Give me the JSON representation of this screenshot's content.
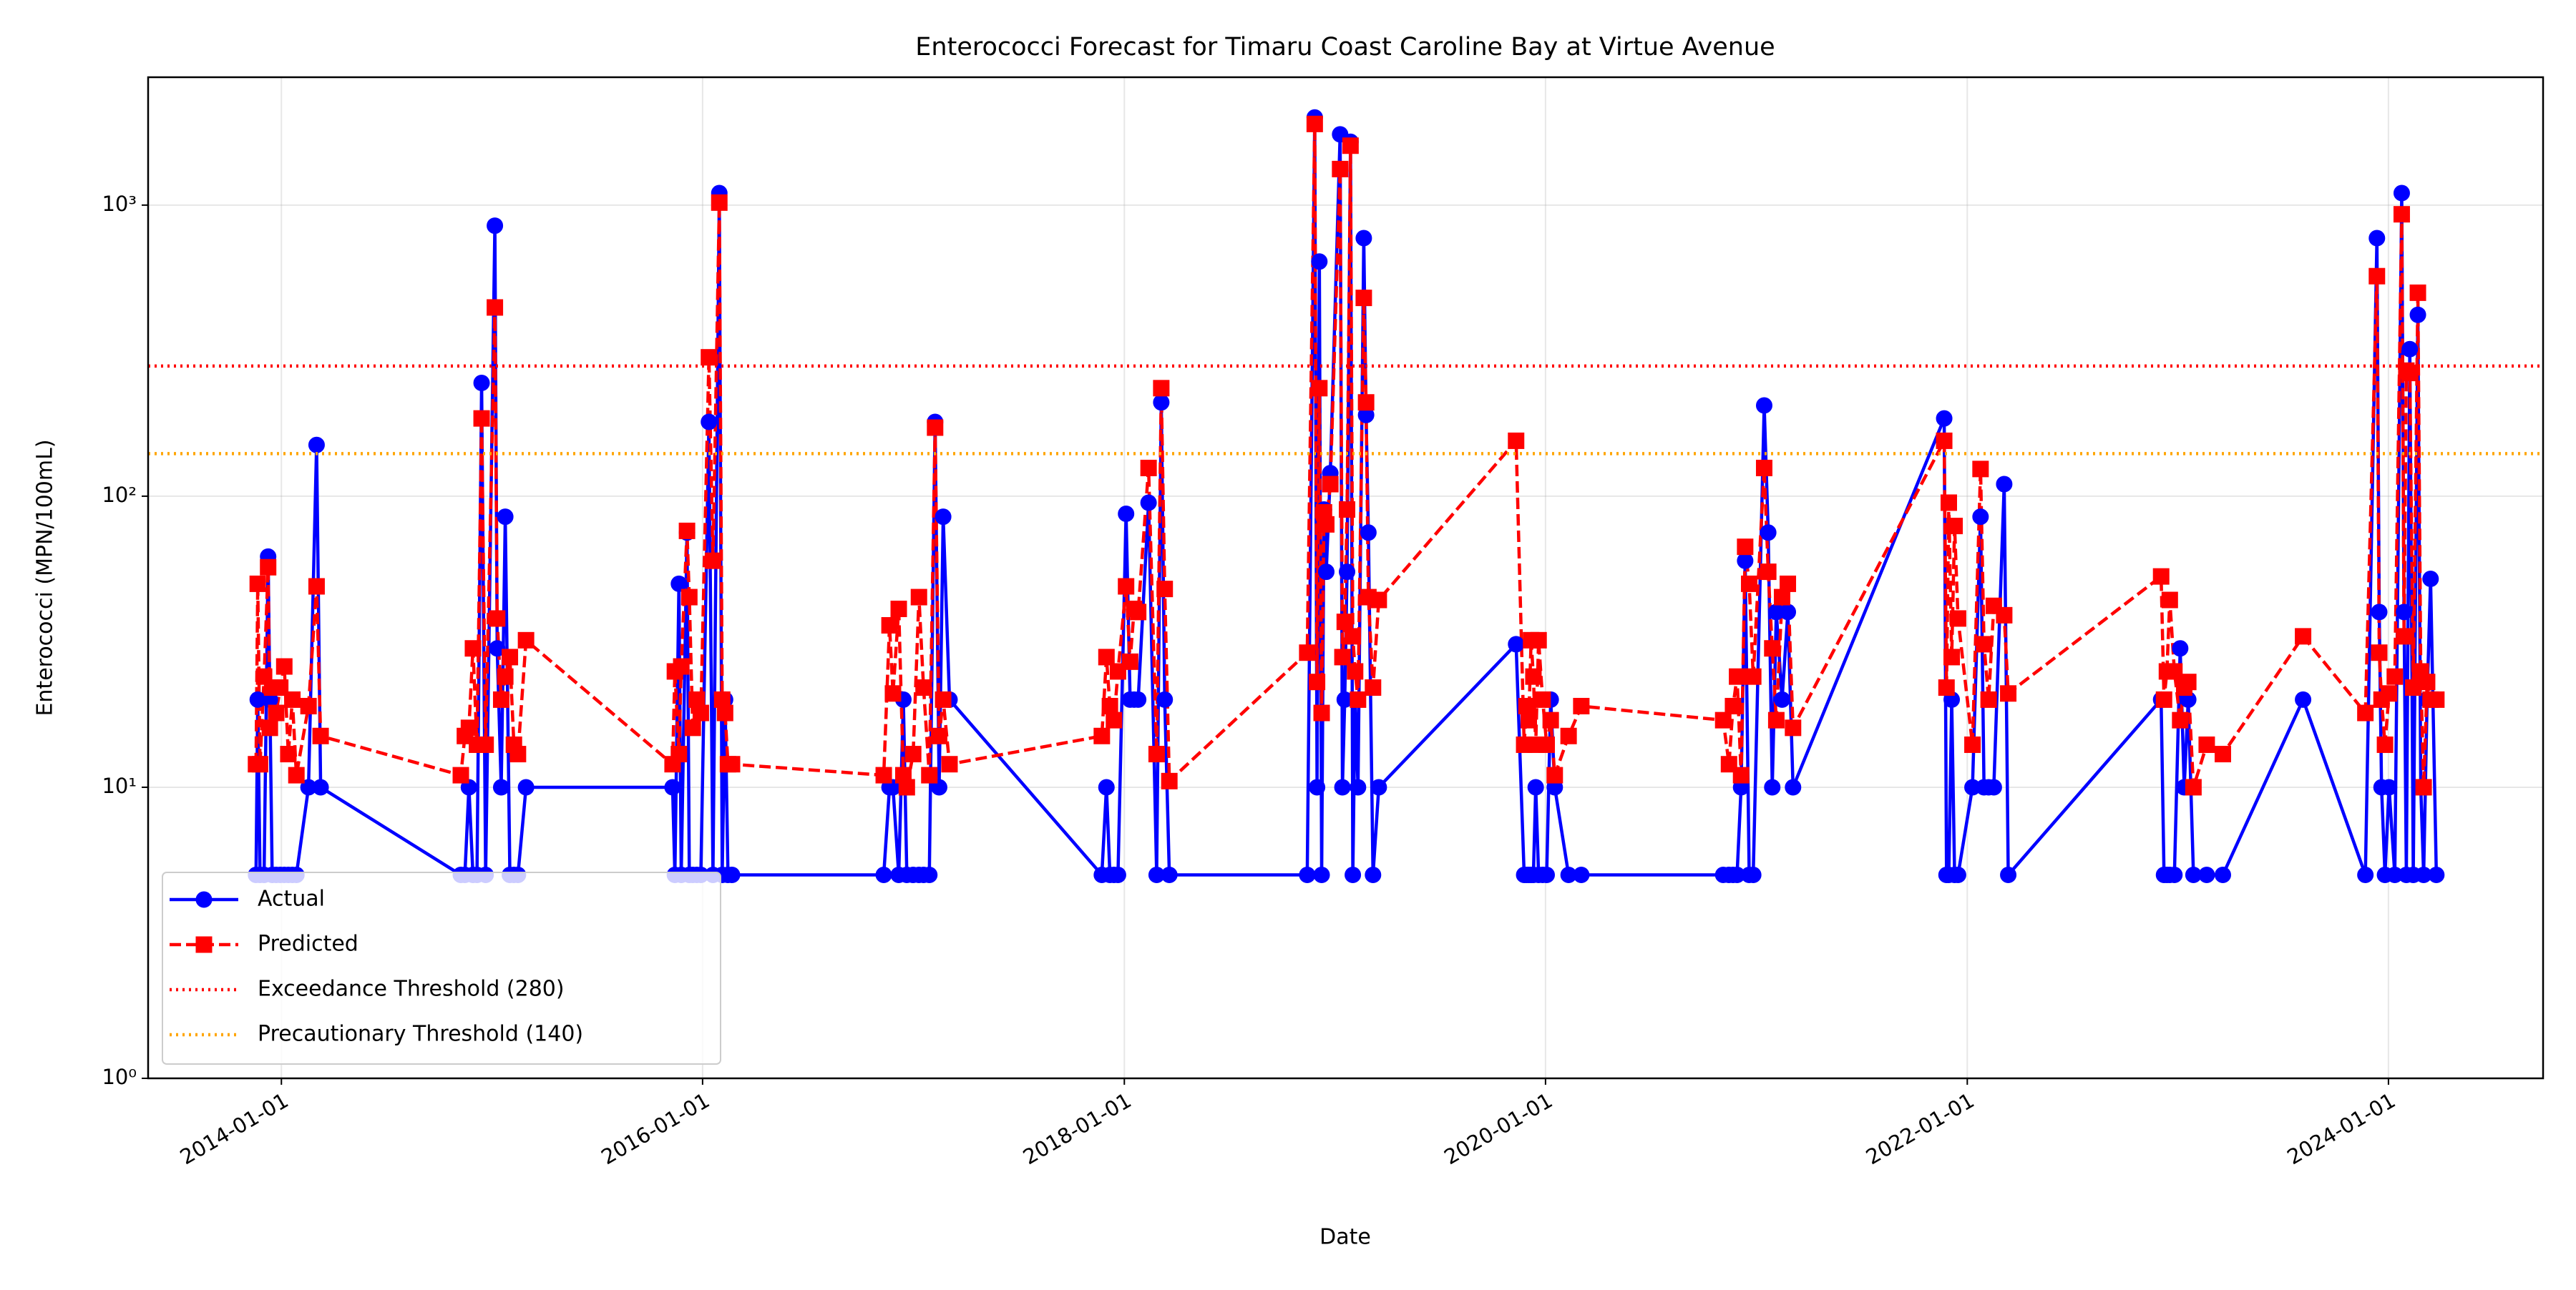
{
  "chart_data": {
    "type": "line",
    "title": "Enterococci Forecast for Timaru Coast Caroline Bay at Virtue Avenue",
    "x_label": "Date",
    "y_label": "Enterococci (MPN/100mL)",
    "yscale": "log",
    "grid": true,
    "legend": "lower left",
    "xlim": [
      "2013-05-15",
      "2024-09-25"
    ],
    "xticks": [
      "2014-01-01",
      "2016-01-01",
      "2018-01-01",
      "2020-01-01",
      "2022-01-01",
      "2024-01-01"
    ],
    "ylim": [
      1,
      2750
    ],
    "yticks": [
      {
        "value": 1,
        "label": "10⁰"
      },
      {
        "value": 10,
        "label": "10¹"
      },
      {
        "value": 100,
        "label": "10²"
      },
      {
        "value": 1000,
        "label": "10³"
      }
    ],
    "x": [
      "2013-11-18",
      "2013-11-21",
      "2013-11-25",
      "2013-12-02",
      "2013-12-09",
      "2013-12-12",
      "2013-12-16",
      "2013-12-23",
      "2013-12-30",
      "2014-01-06",
      "2014-01-13",
      "2014-01-20",
      "2014-01-27",
      "2014-02-17",
      "2014-03-03",
      "2014-03-10",
      "2014-11-08",
      "2014-11-15",
      "2014-11-22",
      "2014-11-29",
      "2014-12-06",
      "2014-12-14",
      "2014-12-21",
      "2015-01-06",
      "2015-01-10",
      "2015-01-17",
      "2015-01-24",
      "2015-02-01",
      "2015-02-08",
      "2015-02-15",
      "2015-03-01",
      "2015-11-10",
      "2015-11-14",
      "2015-11-21",
      "2015-11-25",
      "2015-12-05",
      "2015-12-09",
      "2015-12-15",
      "2015-12-22",
      "2015-12-29",
      "2016-01-12",
      "2016-01-19",
      "2016-01-30",
      "2016-02-04",
      "2016-02-09",
      "2016-02-14",
      "2016-02-21",
      "2016-11-10",
      "2016-11-20",
      "2016-11-26",
      "2016-12-06",
      "2016-12-14",
      "2016-12-20",
      "2016-12-31",
      "2017-01-10",
      "2017-01-18",
      "2017-01-28",
      "2017-02-07",
      "2017-02-14",
      "2017-02-21",
      "2017-03-04",
      "2017-11-23",
      "2017-12-01",
      "2017-12-07",
      "2017-12-14",
      "2017-12-21",
      "2018-01-04",
      "2018-01-11",
      "2018-01-18",
      "2018-01-25",
      "2018-02-12",
      "2018-02-26",
      "2018-03-06",
      "2018-03-12",
      "2018-03-20",
      "2018-11-14",
      "2018-11-27",
      "2018-12-01",
      "2018-12-05",
      "2018-12-09",
      "2018-12-13",
      "2018-12-17",
      "2018-12-24",
      "2019-01-10",
      "2019-01-14",
      "2019-01-18",
      "2019-01-22",
      "2019-01-28",
      "2019-02-01",
      "2019-02-05",
      "2019-02-10",
      "2019-02-20",
      "2019-02-24",
      "2019-02-28",
      "2019-03-08",
      "2019-03-18",
      "2019-11-11",
      "2019-11-25",
      "2019-11-29",
      "2019-12-03",
      "2019-12-07",
      "2019-12-11",
      "2019-12-15",
      "2019-12-20",
      "2019-12-27",
      "2020-01-03",
      "2020-01-10",
      "2020-01-17",
      "2020-02-10",
      "2020-03-03",
      "2020-11-04",
      "2020-11-14",
      "2020-11-21",
      "2020-11-28",
      "2020-12-05",
      "2020-12-12",
      "2020-12-19",
      "2020-12-26",
      "2021-01-14",
      "2021-01-21",
      "2021-01-28",
      "2021-02-04",
      "2021-02-14",
      "2021-02-24",
      "2021-03-05",
      "2021-11-22",
      "2021-11-26",
      "2021-11-30",
      "2021-12-05",
      "2021-12-10",
      "2021-12-16",
      "2022-01-10",
      "2022-01-24",
      "2022-01-30",
      "2022-02-07",
      "2022-02-16",
      "2022-03-06",
      "2022-03-13",
      "2022-12-03",
      "2022-12-08",
      "2022-12-13",
      "2022-12-18",
      "2022-12-26",
      "2023-01-05",
      "2023-01-12",
      "2023-01-19",
      "2023-01-28",
      "2023-02-20",
      "2023-03-20",
      "2023-08-06",
      "2023-11-22",
      "2023-12-12",
      "2023-12-16",
      "2023-12-20",
      "2023-12-26",
      "2024-01-02",
      "2024-01-12",
      "2024-01-24",
      "2024-01-28",
      "2024-02-01",
      "2024-02-07",
      "2024-02-13",
      "2024-02-21",
      "2024-02-26",
      "2024-03-02",
      "2024-03-08",
      "2024-03-14",
      "2024-03-24"
    ],
    "series": [
      {
        "name": "Actual",
        "color": "#0000ff",
        "marker": "circle",
        "linestyle": "solid",
        "values": [
          5,
          20,
          5,
          5,
          62,
          20,
          5,
          5,
          5,
          5,
          5,
          5,
          5,
          10,
          150,
          10,
          5,
          5,
          10,
          5,
          5,
          245,
          5,
          850,
          30,
          10,
          85,
          5,
          5,
          5,
          10,
          10,
          5,
          50,
          5,
          75,
          5,
          5,
          5,
          5,
          180,
          5,
          1100,
          5,
          20,
          5,
          5,
          5,
          10,
          10,
          5,
          20,
          5,
          5,
          5,
          5,
          5,
          180,
          10,
          85,
          20,
          5,
          10,
          5,
          5,
          5,
          87,
          20,
          20,
          20,
          95,
          5,
          210,
          20,
          5,
          5,
          2000,
          10,
          640,
          5,
          90,
          55,
          120,
          1750,
          10,
          20,
          55,
          1650,
          5,
          20,
          10,
          770,
          190,
          75,
          5,
          10,
          31,
          5,
          5,
          5,
          5,
          5,
          10,
          5,
          5,
          5,
          20,
          10,
          5,
          5,
          5,
          5,
          5,
          5,
          10,
          60,
          5,
          5,
          205,
          75,
          10,
          40,
          20,
          40,
          10,
          185,
          5,
          5,
          20,
          5,
          5,
          10,
          85,
          10,
          10,
          10,
          110,
          5,
          20,
          5,
          5,
          5,
          5,
          30,
          10,
          20,
          5,
          5,
          5,
          20,
          5,
          770,
          40,
          10,
          5,
          10,
          5,
          1100,
          40,
          5,
          320,
          5,
          420,
          10,
          5,
          20,
          52,
          5
        ]
      },
      {
        "name": "Predicted",
        "color": "#ff0000",
        "marker": "square",
        "linestyle": "dashed",
        "values": [
          12,
          50,
          12,
          24,
          57,
          16,
          22,
          18,
          22,
          26,
          13,
          20,
          11,
          19,
          49,
          15,
          11,
          15,
          16,
          30,
          14,
          185,
          14,
          445,
          38,
          20,
          24,
          28,
          14,
          13,
          32,
          12,
          25,
          13,
          26,
          76,
          45,
          16,
          20,
          18,
          300,
          60,
          1020,
          20,
          18,
          12,
          12,
          11,
          36,
          21,
          41,
          11,
          10,
          13,
          45,
          22,
          11,
          172,
          15,
          20,
          12,
          15,
          28,
          19,
          17,
          25,
          49,
          27,
          41,
          40,
          125,
          13,
          235,
          48,
          10.5,
          29,
          1900,
          23,
          235,
          18,
          88,
          80,
          110,
          1330,
          28,
          37,
          90,
          1600,
          33,
          25,
          20,
          480,
          210,
          45,
          22,
          44,
          155,
          14,
          19,
          17,
          32,
          24,
          14,
          32,
          20,
          14,
          17,
          11,
          15,
          19,
          17,
          12,
          19,
          24,
          11,
          67,
          50,
          24,
          125,
          55,
          30,
          17,
          45,
          50,
          16,
          155,
          22,
          95,
          28,
          79,
          38,
          14,
          124,
          31,
          20,
          42,
          39,
          21,
          53,
          20,
          25,
          44,
          25,
          17,
          22,
          23,
          10,
          14,
          13,
          33,
          18,
          570,
          29,
          20,
          14,
          21,
          24,
          930,
          33,
          270,
          265,
          22,
          500,
          25,
          10,
          23,
          20,
          20
        ]
      }
    ],
    "thresholds": [
      {
        "name": "Exceedance Threshold (280)",
        "value": 280,
        "color": "#ff0000",
        "linestyle": "dotted"
      },
      {
        "name": "Precautionary Threshold (140)",
        "value": 140,
        "color": "#ffa500",
        "linestyle": "dotted"
      }
    ]
  }
}
